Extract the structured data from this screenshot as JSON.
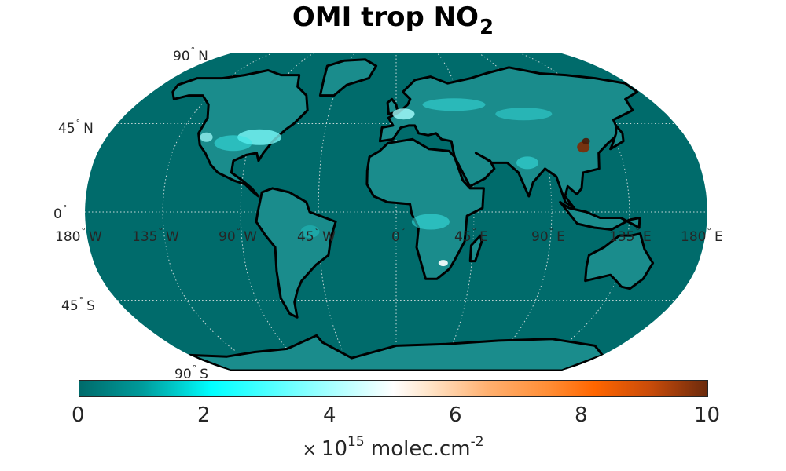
{
  "title": {
    "main": "OMI trop NO",
    "sub": "2"
  },
  "latitude_labels": [
    {
      "value": "90",
      "hemisphere": "N"
    },
    {
      "value": "45",
      "hemisphere": "N"
    },
    {
      "value": "0",
      "hemisphere": ""
    },
    {
      "value": "45",
      "hemisphere": "S"
    },
    {
      "value": "90",
      "hemisphere": "S"
    }
  ],
  "longitude_labels": [
    {
      "value": "180",
      "hemisphere": "W"
    },
    {
      "value": "135",
      "hemisphere": "W"
    },
    {
      "value": "90",
      "hemisphere": "W"
    },
    {
      "value": "45",
      "hemisphere": "W"
    },
    {
      "value": "0",
      "hemisphere": ""
    },
    {
      "value": "45",
      "hemisphere": "E"
    },
    {
      "value": "90",
      "hemisphere": "E"
    },
    {
      "value": "135",
      "hemisphere": "E"
    },
    {
      "value": "180",
      "hemisphere": "E"
    }
  ],
  "colorbar": {
    "ticks": [
      "0",
      "2",
      "4",
      "6",
      "8",
      "10"
    ],
    "range": [
      0,
      10
    ],
    "unit_prefix": "×",
    "unit_base": "10",
    "unit_exponent": "15",
    "unit_text": " molec.cm",
    "unit_text_exponent": "-2"
  },
  "colors": {
    "ocean": "#006b6b",
    "coast": "#000000",
    "graticule": "#c8d8d8",
    "high_no2": "#7a2e0a"
  }
}
